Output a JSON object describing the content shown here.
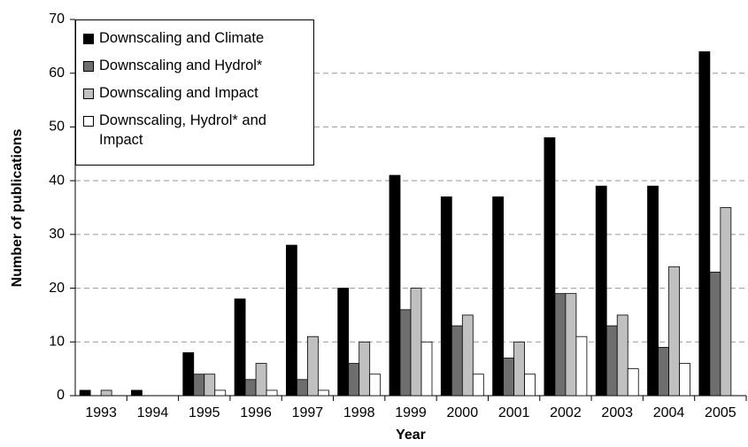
{
  "chart_data": {
    "type": "bar",
    "x_label": "Year",
    "y_label": "Number of publications",
    "categories": [
      "1993",
      "1994",
      "1995",
      "1996",
      "1997",
      "1998",
      "1999",
      "2000",
      "2001",
      "2002",
      "2003",
      "2004",
      "2005"
    ],
    "series": [
      {
        "name": "Downscaling and Climate",
        "color": "#000000",
        "values": [
          1,
          1,
          8,
          18,
          28,
          20,
          41,
          37,
          37,
          48,
          39,
          39,
          64
        ]
      },
      {
        "name": "Downscaling and Hydrol*",
        "color": "#6e6e6e",
        "values": [
          0,
          0,
          4,
          3,
          3,
          6,
          16,
          13,
          7,
          19,
          13,
          9,
          23
        ]
      },
      {
        "name": "Downscaling and Impact",
        "color": "#c0c0c0",
        "values": [
          1,
          0,
          4,
          6,
          11,
          10,
          20,
          15,
          10,
          19,
          15,
          24,
          35
        ]
      },
      {
        "name": "Downscaling, Hydrol* and Impact",
        "color": "#ffffff",
        "values": [
          0,
          0,
          1,
          1,
          1,
          4,
          10,
          4,
          4,
          11,
          5,
          6,
          0
        ]
      }
    ],
    "ylim": [
      0,
      70
    ],
    "yticks": [
      0,
      10,
      20,
      30,
      40,
      50,
      60,
      70
    ],
    "grid": true,
    "legend": "top-left"
  }
}
